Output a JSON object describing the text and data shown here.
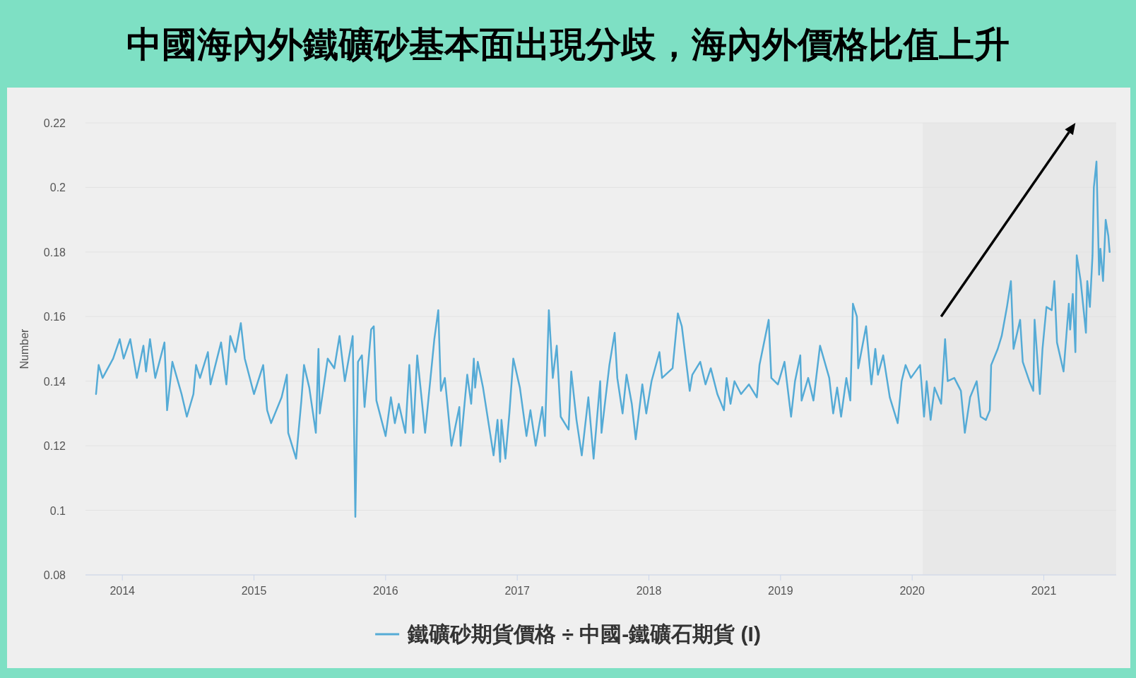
{
  "chart_data": {
    "type": "line",
    "title": "中國海內外鐵礦砂基本面出現分歧，海內外價格比值上升",
    "ylabel": "Number",
    "x": [
      2013.8,
      2013.82,
      2013.85,
      2013.93,
      2013.98,
      2014.01,
      2014.06,
      2014.11,
      2014.16,
      2014.18,
      2014.21,
      2014.25,
      2014.32,
      2014.34,
      2014.38,
      2014.45,
      2014.49,
      2014.54,
      2014.56,
      2014.59,
      2014.65,
      2014.67,
      2014.75,
      2014.79,
      2014.82,
      2014.86,
      2014.9,
      2014.93,
      2015.0,
      2015.07,
      2015.1,
      2015.13,
      2015.21,
      2015.25,
      2015.26,
      2015.32,
      2015.36,
      2015.38,
      2015.42,
      2015.47,
      2015.49,
      2015.5,
      2015.56,
      2015.61,
      2015.65,
      2015.69,
      2015.75,
      2015.77,
      2015.79,
      2015.82,
      2015.84,
      2015.89,
      2015.91,
      2015.93,
      2016.0,
      2016.04,
      2016.07,
      2016.1,
      2016.15,
      2016.18,
      2016.21,
      2016.24,
      2016.3,
      2016.37,
      2016.4,
      2016.42,
      2016.45,
      2016.5,
      2016.56,
      2016.57,
      2016.62,
      2016.65,
      2016.67,
      2016.68,
      2016.7,
      2016.74,
      2016.82,
      2016.85,
      2016.87,
      2016.88,
      2016.91,
      2016.94,
      2016.97,
      2017.02,
      2017.07,
      2017.1,
      2017.14,
      2017.19,
      2017.21,
      2017.24,
      2017.27,
      2017.3,
      2017.33,
      2017.39,
      2017.41,
      2017.45,
      2017.49,
      2017.54,
      2017.58,
      2017.63,
      2017.64,
      2017.7,
      2017.74,
      2017.76,
      2017.8,
      2017.83,
      2017.87,
      2017.9,
      2017.95,
      2017.98,
      2018.02,
      2018.08,
      2018.1,
      2018.18,
      2018.22,
      2018.25,
      2018.31,
      2018.33,
      2018.39,
      2018.43,
      2018.47,
      2018.52,
      2018.57,
      2018.59,
      2018.62,
      2018.65,
      2018.7,
      2018.76,
      2018.82,
      2018.84,
      2018.91,
      2018.93,
      2018.98,
      2019.03,
      2019.08,
      2019.11,
      2019.15,
      2019.16,
      2019.21,
      2019.25,
      2019.3,
      2019.37,
      2019.4,
      2019.43,
      2019.46,
      2019.5,
      2019.53,
      2019.55,
      2019.58,
      2019.59,
      2019.65,
      2019.69,
      2019.72,
      2019.74,
      2019.78,
      2019.83,
      2019.89,
      2019.92,
      2019.95,
      2019.99,
      2020.06,
      2020.09,
      2020.11,
      2020.14,
      2020.17,
      2020.22,
      2020.25,
      2020.27,
      2020.32,
      2020.37,
      2020.4,
      2020.44,
      2020.49,
      2020.52,
      2020.56,
      2020.59,
      2020.6,
      2020.65,
      2020.68,
      2020.72,
      2020.75,
      2020.77,
      2020.82,
      2020.84,
      2020.89,
      2020.92,
      2020.93,
      2020.97,
      2020.99,
      2021.02,
      2021.06,
      2021.08,
      2021.1,
      2021.15,
      2021.19,
      2021.2,
      2021.22,
      2021.24,
      2021.25,
      2021.28,
      2021.32,
      2021.33,
      2021.35,
      2021.37,
      2021.38,
      2021.4,
      2021.42,
      2021.43,
      2021.45,
      2021.47,
      2021.49,
      2021.5
    ],
    "series": [
      {
        "name": "鐵礦砂期貨價格 ÷ 中國-鐵礦石期貨 (I)",
        "color": "#55abd6",
        "values": [
          0.136,
          0.145,
          0.141,
          0.147,
          0.153,
          0.147,
          0.153,
          0.141,
          0.151,
          0.143,
          0.153,
          0.141,
          0.152,
          0.131,
          0.146,
          0.136,
          0.129,
          0.136,
          0.145,
          0.141,
          0.149,
          0.139,
          0.152,
          0.139,
          0.154,
          0.149,
          0.158,
          0.147,
          0.136,
          0.145,
          0.131,
          0.127,
          0.135,
          0.142,
          0.124,
          0.116,
          0.134,
          0.145,
          0.138,
          0.124,
          0.15,
          0.13,
          0.147,
          0.144,
          0.154,
          0.14,
          0.154,
          0.098,
          0.146,
          0.148,
          0.132,
          0.156,
          0.157,
          0.134,
          0.123,
          0.135,
          0.127,
          0.133,
          0.124,
          0.145,
          0.124,
          0.148,
          0.124,
          0.153,
          0.162,
          0.137,
          0.141,
          0.12,
          0.132,
          0.12,
          0.142,
          0.133,
          0.147,
          0.138,
          0.146,
          0.138,
          0.117,
          0.128,
          0.115,
          0.128,
          0.116,
          0.13,
          0.147,
          0.138,
          0.123,
          0.131,
          0.12,
          0.132,
          0.123,
          0.162,
          0.141,
          0.151,
          0.129,
          0.125,
          0.143,
          0.128,
          0.117,
          0.135,
          0.116,
          0.14,
          0.124,
          0.145,
          0.155,
          0.141,
          0.13,
          0.142,
          0.133,
          0.122,
          0.139,
          0.13,
          0.14,
          0.149,
          0.141,
          0.144,
          0.161,
          0.157,
          0.137,
          0.142,
          0.146,
          0.139,
          0.144,
          0.136,
          0.131,
          0.141,
          0.133,
          0.14,
          0.136,
          0.139,
          0.135,
          0.145,
          0.159,
          0.141,
          0.139,
          0.146,
          0.129,
          0.14,
          0.148,
          0.134,
          0.141,
          0.134,
          0.151,
          0.141,
          0.13,
          0.138,
          0.129,
          0.141,
          0.134,
          0.164,
          0.16,
          0.144,
          0.157,
          0.139,
          0.15,
          0.142,
          0.148,
          0.135,
          0.127,
          0.14,
          0.145,
          0.141,
          0.145,
          0.129,
          0.14,
          0.128,
          0.138,
          0.133,
          0.153,
          0.14,
          0.141,
          0.137,
          0.124,
          0.135,
          0.14,
          0.129,
          0.128,
          0.131,
          0.145,
          0.15,
          0.154,
          0.163,
          0.171,
          0.15,
          0.159,
          0.146,
          0.14,
          0.137,
          0.159,
          0.136,
          0.15,
          0.163,
          0.162,
          0.171,
          0.152,
          0.143,
          0.164,
          0.156,
          0.167,
          0.149,
          0.179,
          0.171,
          0.155,
          0.171,
          0.163,
          0.179,
          0.2,
          0.208,
          0.173,
          0.181,
          0.171,
          0.19,
          0.185,
          0.18
        ]
      }
    ],
    "xlim": [
      2013.72,
      2021.55
    ],
    "xticks": [
      2014,
      2015,
      2016,
      2017,
      2018,
      2019,
      2020,
      2021
    ],
    "ylim": [
      0.08,
      0.22
    ],
    "yticks": [
      0.08,
      0.1,
      0.12,
      0.14,
      0.16,
      0.18,
      0.2,
      0.22
    ],
    "grid": "y",
    "legend": "bottom",
    "bands": [
      {
        "axis": "x",
        "from": 2020.08,
        "to": 2021.55,
        "color": "#e8e8e8"
      }
    ]
  }
}
